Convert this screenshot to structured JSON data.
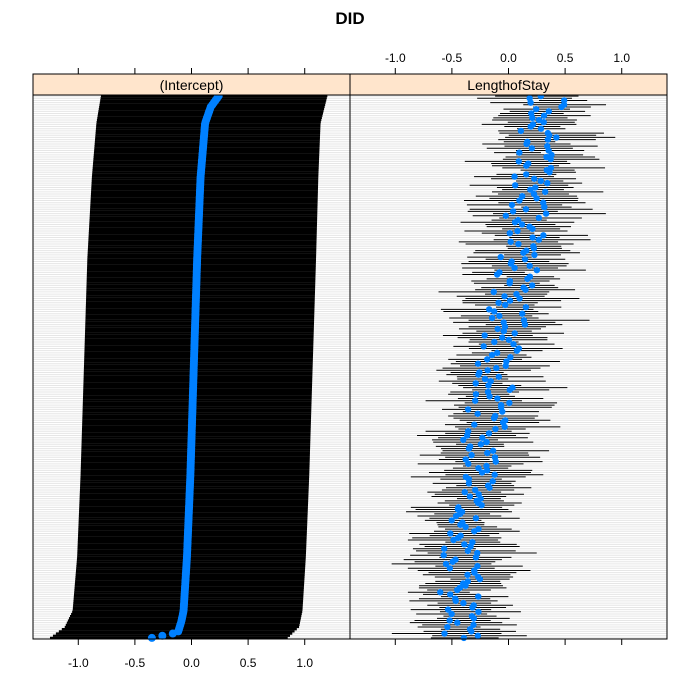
{
  "title": "DID",
  "colors": {
    "strip_bg": "#ffe5cc",
    "point": "#0080ff",
    "interval": "#000000",
    "gridline": "#e6e6e6",
    "frame": "#000000"
  },
  "chart_data": {
    "type": "dotplot",
    "title": "DID",
    "xlabel": "",
    "ylabel": "",
    "n_groups": 250,
    "xlim": [
      -1.4,
      1.4
    ],
    "ticks": [
      -1.0,
      -0.5,
      0.0,
      0.5,
      1.0
    ],
    "tick_labels": [
      "-1.0",
      "-0.5",
      "0.0",
      "0.5",
      "1.0"
    ],
    "panels": [
      {
        "name": "(Intercept)",
        "tick_labels_side": "bottom",
        "estimate_curve": {
          "quantiles": [
            0.0,
            0.01,
            0.03,
            0.05,
            0.15,
            0.3,
            0.5,
            0.7,
            0.85,
            0.95,
            0.98,
            1.0
          ],
          "values": [
            -0.35,
            -0.12,
            -0.09,
            -0.07,
            -0.04,
            -0.01,
            0.02,
            0.05,
            0.08,
            0.12,
            0.17,
            0.24
          ]
        },
        "lower_curve": {
          "quantiles": [
            0.0,
            0.02,
            0.05,
            0.15,
            0.3,
            0.5,
            0.7,
            0.85,
            0.95,
            1.0
          ],
          "values": [
            -1.25,
            -1.12,
            -1.05,
            -1.01,
            -0.98,
            -0.95,
            -0.92,
            -0.88,
            -0.84,
            -0.8
          ]
        },
        "upper_curve": {
          "quantiles": [
            0.0,
            0.02,
            0.05,
            0.15,
            0.3,
            0.5,
            0.7,
            0.85,
            0.95,
            1.0
          ],
          "values": [
            0.85,
            0.95,
            0.98,
            1.01,
            1.04,
            1.07,
            1.1,
            1.12,
            1.14,
            1.2
          ]
        }
      },
      {
        "name": "LengthofStay",
        "tick_labels_side": "top",
        "estimate_trend": {
          "quantiles": [
            0.0,
            0.1,
            0.25,
            0.4,
            0.55,
            0.7,
            0.85,
            1.0
          ],
          "values": [
            -0.45,
            -0.42,
            -0.35,
            -0.2,
            -0.05,
            0.1,
            0.2,
            0.35
          ]
        },
        "estimate_spread": 0.18,
        "interval_halfwidth": [
          0.2,
          0.5
        ]
      }
    ]
  }
}
